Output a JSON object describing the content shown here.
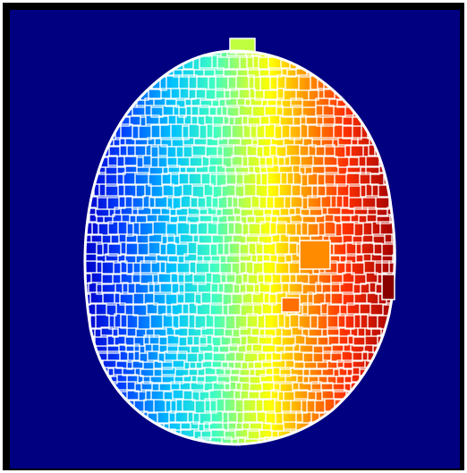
{
  "image": {
    "kind": "segmentation-map",
    "subject": "head-cross-section",
    "background_color": "#000080",
    "frame_color": "#000000",
    "boundary_color": "#ffffff",
    "colormap": "jet",
    "colormap_stops": [
      "#0000c8",
      "#0040ff",
      "#00c0ff",
      "#40ffc0",
      "#c0ff40",
      "#ffff00",
      "#ffa000",
      "#ff3000",
      "#a00000"
    ]
  }
}
